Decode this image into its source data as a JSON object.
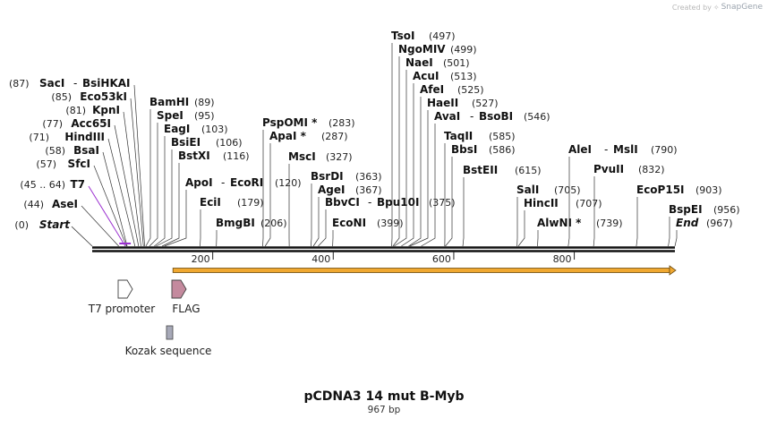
{
  "credit": {
    "prefix": "Created by",
    "brand": "SnapGene"
  },
  "map": {
    "title": "pCDNA3 14 mut B-Myb",
    "length_label": "967 bp",
    "length": 967,
    "ticks": [
      {
        "label": "200",
        "value": 200
      },
      {
        "label": "400",
        "value": 400
      },
      {
        "label": "600",
        "value": 600
      },
      {
        "label": "800",
        "value": 800
      }
    ]
  },
  "colors": {
    "feature_purple": "#9b30d0",
    "orf_orange": "#f0a830",
    "flag_fill": "#c48a9e",
    "kozak_fill": "#a7a9b8"
  },
  "left_labels": [
    {
      "pos": "(0)",
      "name": "Start",
      "italic": true,
      "site": 0
    },
    {
      "pos": "(44)",
      "name": "AseI",
      "site": 44
    },
    {
      "pos": "(45 .. 64)",
      "name": "T7",
      "purple": true,
      "site": 55
    },
    {
      "pos": "(57)",
      "name": "SfcI",
      "site": 57
    },
    {
      "pos": "(58)",
      "name": "BsaI",
      "site": 58
    },
    {
      "pos": "(71)",
      "name": "HindIII",
      "site": 71
    },
    {
      "pos": "(77)",
      "name": "Acc65I",
      "site": 77
    },
    {
      "pos": "(81)",
      "name": "KpnI",
      "site": 81
    },
    {
      "pos": "(85)",
      "name": "Eco53kI",
      "site": 85
    },
    {
      "pos": "(87)",
      "name": "SacI",
      "name2": "BsiHKAI",
      "site": 87
    }
  ],
  "right_labels": [
    {
      "name": "BamHI",
      "pos": "(89)",
      "site": 89
    },
    {
      "name": "SpeI",
      "pos": "(95)",
      "site": 95
    },
    {
      "name": "EagI",
      "pos": "(103)",
      "site": 103
    },
    {
      "name": "BsiEI",
      "pos": "(106)",
      "site": 106
    },
    {
      "name": "BstXI",
      "pos": "(116)",
      "site": 116
    },
    {
      "name": "ApoI",
      "name2": "EcoRI",
      "pos": "(120)",
      "site": 120
    },
    {
      "name": "EciI",
      "pos": "(179)",
      "site": 179
    },
    {
      "name": "BmgBI",
      "pos": "(206)",
      "site": 206
    },
    {
      "name": "PspOMI *",
      "pos": "(283)",
      "site": 283
    },
    {
      "name": "ApaI *",
      "pos": "(287)",
      "site": 287
    },
    {
      "name": "MscI",
      "pos": "(327)",
      "site": 327
    },
    {
      "name": "BsrDI",
      "pos": "(363)",
      "site": 363
    },
    {
      "name": "AgeI",
      "pos": "(367)",
      "site": 367
    },
    {
      "name": "BbvCI",
      "name2": "Bpu10I",
      "pos": "(375)",
      "site": 375
    },
    {
      "name": "EcoNI",
      "pos": "(399)",
      "site": 399
    },
    {
      "name": "TsoI",
      "pos": "(497)",
      "site": 497
    },
    {
      "name": "NgoMIV",
      "pos": "(499)",
      "site": 499
    },
    {
      "name": "NaeI",
      "pos": "(501)",
      "site": 501
    },
    {
      "name": "AcuI",
      "pos": "(513)",
      "site": 513
    },
    {
      "name": "AfeI",
      "pos": "(525)",
      "site": 525
    },
    {
      "name": "HaeII",
      "pos": "(527)",
      "site": 527
    },
    {
      "name": "AvaI",
      "name2": "BsoBI",
      "pos": "(546)",
      "site": 546
    },
    {
      "name": "TaqII",
      "pos": "(585)",
      "site": 585
    },
    {
      "name": "BbsI",
      "pos": "(586)",
      "site": 586
    },
    {
      "name": "BstEII",
      "pos": "(615)",
      "site": 615
    },
    {
      "name": "SalI",
      "pos": "(705)",
      "site": 705
    },
    {
      "name": "HincII",
      "pos": "(707)",
      "site": 707
    },
    {
      "name": "AlwNI *",
      "pos": "(739)",
      "site": 739
    },
    {
      "name": "AleI",
      "name2": "MslI",
      "pos": "(790)",
      "site": 790
    },
    {
      "name": "PvuII",
      "pos": "(832)",
      "site": 832
    },
    {
      "name": "EcoP15I",
      "pos": "(903)",
      "site": 903
    },
    {
      "name": "BspEI",
      "pos": "(956)",
      "site": 956
    },
    {
      "name": "End",
      "pos": "(967)",
      "italic": true,
      "site": 967
    }
  ],
  "features": [
    {
      "name": "T7 promoter",
      "shape": "arrow",
      "color": "#ffffff",
      "start": 45,
      "end": 64
    },
    {
      "name": "FLAG",
      "shape": "arrow",
      "color": "#c48a9e",
      "start": 134,
      "end": 157
    },
    {
      "name": "Kozak sequence",
      "shape": "box",
      "color": "#a7a9b8",
      "start": 125,
      "end": 134
    }
  ],
  "orf": {
    "start": 134,
    "end": 967
  }
}
